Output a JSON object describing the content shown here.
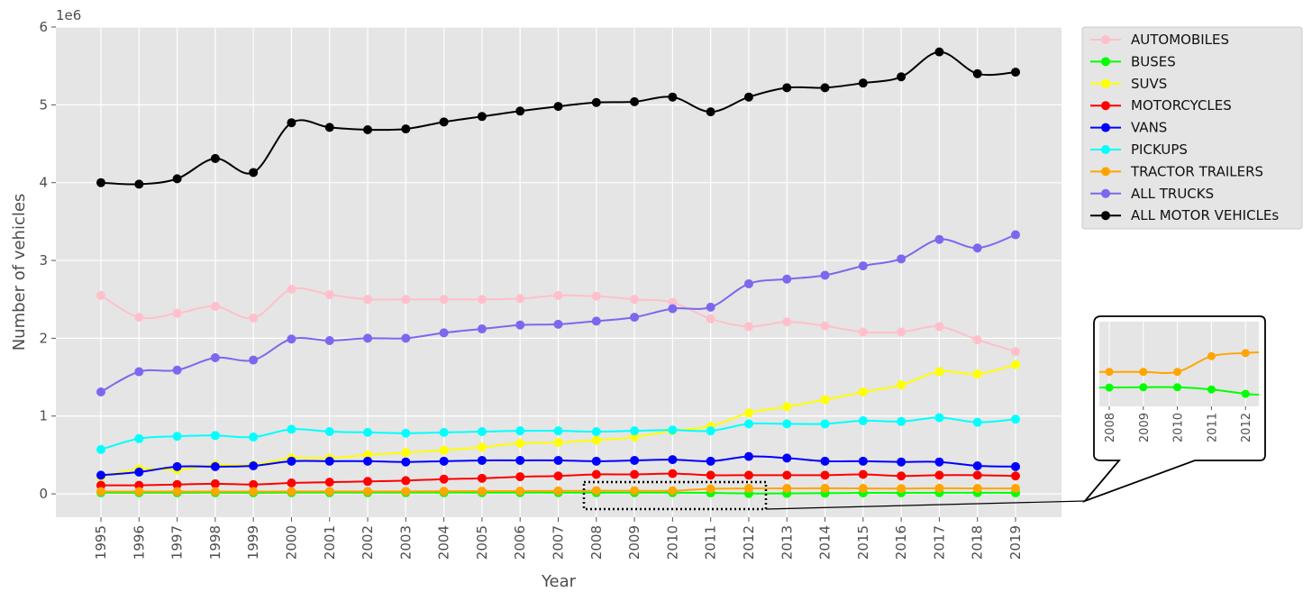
{
  "chart_data": {
    "type": "line",
    "title": "",
    "xlabel": "Year",
    "ylabel": "Number of vehicles",
    "y_scale_label": "1e6",
    "x": [
      1995,
      1996,
      1997,
      1998,
      1999,
      2000,
      2001,
      2002,
      2003,
      2004,
      2005,
      2006,
      2007,
      2008,
      2009,
      2010,
      2011,
      2012,
      2013,
      2014,
      2015,
      2016,
      2017,
      2018,
      2019
    ],
    "x_tick_labels": [
      "1995",
      "1996",
      "1997",
      "1998",
      "1999",
      "2000",
      "2001",
      "2002",
      "2003",
      "2004",
      "2005",
      "2006",
      "2007",
      "2008",
      "2009",
      "2010",
      "2011",
      "2012",
      "2013",
      "2014",
      "2015",
      "2016",
      "2017",
      "2018",
      "2019"
    ],
    "ylim": [
      -300000,
      6000000
    ],
    "y_ticks": [
      0,
      1000000,
      2000000,
      3000000,
      4000000,
      5000000,
      6000000
    ],
    "y_tick_labels": [
      "0",
      "1",
      "2",
      "3",
      "4",
      "5",
      "6"
    ],
    "grid": true,
    "legend_position": "outside-right-top",
    "series": [
      {
        "name": "AUTOMOBILES",
        "color": "#ffc0cb",
        "values": [
          2550000,
          2270000,
          2320000,
          2410000,
          2260000,
          2630000,
          2560000,
          2500000,
          2500000,
          2500000,
          2500000,
          2510000,
          2550000,
          2540000,
          2500000,
          2460000,
          2250000,
          2150000,
          2210000,
          2160000,
          2080000,
          2080000,
          2150000,
          1980000,
          1830000
        ]
      },
      {
        "name": "BUSES",
        "color": "#00ff00",
        "values": [
          15000,
          14000,
          14500,
          15000,
          14000,
          15500,
          15000,
          15000,
          15000,
          15000,
          15500,
          15500,
          15000,
          15000,
          15500,
          15500,
          12000,
          5000,
          6000,
          8000,
          12000,
          13000,
          14000,
          14000,
          13000
        ]
      },
      {
        "name": "SUVS",
        "color": "#ffff00",
        "values": [
          220000,
          320000,
          310000,
          370000,
          370000,
          460000,
          460000,
          500000,
          530000,
          560000,
          600000,
          650000,
          660000,
          690000,
          730000,
          810000,
          870000,
          1040000,
          1120000,
          1210000,
          1310000,
          1400000,
          1570000,
          1540000,
          1660000
        ]
      },
      {
        "name": "MOTORCYCLES",
        "color": "#ff0000",
        "values": [
          110000,
          110000,
          120000,
          130000,
          120000,
          140000,
          150000,
          160000,
          170000,
          190000,
          200000,
          220000,
          230000,
          250000,
          250000,
          260000,
          240000,
          240000,
          240000,
          240000,
          250000,
          230000,
          240000,
          240000,
          230000
        ]
      },
      {
        "name": "VANS",
        "color": "#0000ff",
        "values": [
          240000,
          280000,
          350000,
          350000,
          360000,
          420000,
          420000,
          420000,
          410000,
          420000,
          430000,
          430000,
          430000,
          420000,
          430000,
          440000,
          420000,
          480000,
          460000,
          420000,
          420000,
          410000,
          410000,
          360000,
          350000
        ]
      },
      {
        "name": "PICKUPS",
        "color": "#00ffff",
        "values": [
          570000,
          710000,
          740000,
          750000,
          730000,
          830000,
          800000,
          790000,
          780000,
          790000,
          800000,
          810000,
          810000,
          800000,
          810000,
          820000,
          810000,
          900000,
          900000,
          900000,
          940000,
          930000,
          980000,
          920000,
          960000
        ]
      },
      {
        "name": "TRACTOR TRAILERS",
        "color": "#ffa500",
        "values": [
          30000,
          30000,
          30000,
          30000,
          30000,
          30000,
          32000,
          32000,
          32000,
          34000,
          35000,
          36000,
          38000,
          40000,
          40000,
          40000,
          65000,
          70000,
          70000,
          72000,
          70000,
          68000,
          72000,
          70000,
          70000
        ]
      },
      {
        "name": "ALL TRUCKS",
        "color": "#7b68ee",
        "values": [
          1310000,
          1570000,
          1590000,
          1750000,
          1720000,
          1990000,
          1970000,
          2000000,
          2000000,
          2070000,
          2120000,
          2170000,
          2180000,
          2220000,
          2270000,
          2380000,
          2400000,
          2700000,
          2760000,
          2810000,
          2930000,
          3020000,
          3270000,
          3160000,
          3330000
        ]
      },
      {
        "name": "ALL MOTOR VEHICLEs",
        "color": "#000000",
        "values": [
          4000000,
          3980000,
          4050000,
          4310000,
          4130000,
          4770000,
          4710000,
          4680000,
          4690000,
          4780000,
          4850000,
          4920000,
          4980000,
          5030000,
          5040000,
          5100000,
          4910000,
          5100000,
          5220000,
          5220000,
          5280000,
          5360000,
          5680000,
          5400000,
          5420000
        ]
      }
    ],
    "inset": {
      "x_tick_labels": [
        "2008",
        "2009",
        "2010",
        "2011",
        "2012"
      ],
      "series_shown": [
        "BUSES",
        "TRACTOR TRAILERS"
      ]
    }
  }
}
